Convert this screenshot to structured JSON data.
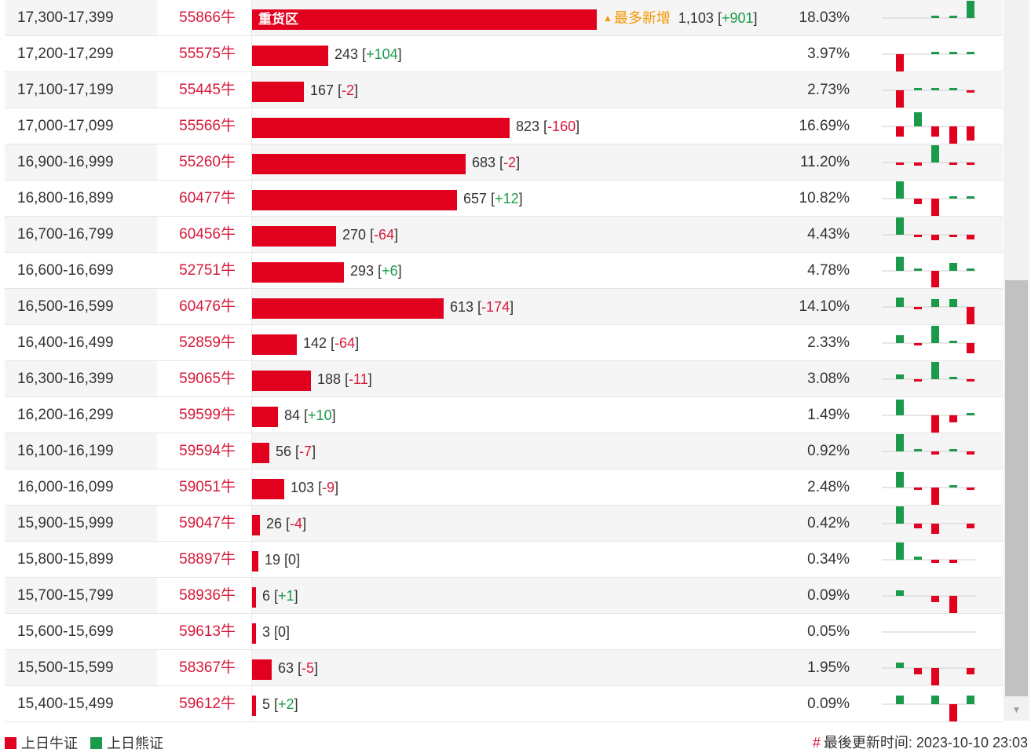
{
  "colors": {
    "bull": "#e2001f",
    "bear": "#1a9a4a",
    "hot": "#f39800",
    "code": "#d6193a"
  },
  "hot_zone_label": "重货区",
  "hot_tag": "最多新增",
  "rows": [
    {
      "range": "17,300-17,399",
      "code": "55866牛",
      "count": "1,103",
      "delta": "+901",
      "pct": "18.03%",
      "bar": 1103,
      "spark": [
        0,
        0,
        0,
        0.15,
        0.05,
        1
      ]
    },
    {
      "range": "17,200-17,299",
      "code": "55575牛",
      "count": "243",
      "delta": "+104",
      "pct": "3.97%",
      "bar": 243,
      "spark": [
        0,
        -1,
        0,
        0.15,
        0.05,
        0.15
      ]
    },
    {
      "range": "17,100-17,199",
      "code": "55445牛",
      "count": "167",
      "delta": "-2",
      "pct": "2.73%",
      "bar": 167,
      "spark": [
        0,
        -1,
        0.05,
        0.15,
        0.05,
        -0.1
      ]
    },
    {
      "range": "17,000-17,099",
      "code": "55566牛",
      "count": "823",
      "delta": "-160",
      "pct": "16.69%",
      "bar": 823,
      "spark": [
        0,
        -0.6,
        0.8,
        -0.6,
        -1,
        -0.8
      ]
    },
    {
      "range": "16,900-16,999",
      "code": "55260牛",
      "count": "683",
      "delta": "-2",
      "pct": "11.20%",
      "bar": 683,
      "spark": [
        0,
        -0.1,
        -0.2,
        1,
        -0.1,
        -0.1
      ]
    },
    {
      "range": "16,800-16,899",
      "code": "60477牛",
      "count": "657",
      "delta": "+12",
      "pct": "10.82%",
      "bar": 657,
      "spark": [
        0,
        1,
        -0.3,
        -1,
        0.05,
        0.05
      ]
    },
    {
      "range": "16,700-16,799",
      "code": "60456牛",
      "count": "270",
      "delta": "-64",
      "pct": "4.43%",
      "bar": 270,
      "spark": [
        0,
        1,
        -0.15,
        -0.3,
        -0.15,
        -0.25
      ]
    },
    {
      "range": "16,600-16,699",
      "code": "52751牛",
      "count": "293",
      "delta": "+6",
      "pct": "4.78%",
      "bar": 293,
      "spark": [
        0,
        0.8,
        0.05,
        -0.95,
        0.45,
        0.05
      ]
    },
    {
      "range": "16,500-16,599",
      "code": "60476牛",
      "count": "613",
      "delta": "-174",
      "pct": "14.10%",
      "bar": 613,
      "spark": [
        0,
        0.55,
        -0.15,
        0.45,
        0.45,
        -1
      ]
    },
    {
      "range": "16,400-16,499",
      "code": "52859牛",
      "count": "142",
      "delta": "-64",
      "pct": "2.33%",
      "bar": 142,
      "spark": [
        0,
        0.45,
        -0.1,
        1,
        0.05,
        -0.6
      ]
    },
    {
      "range": "16,300-16,399",
      "code": "59065牛",
      "count": "188",
      "delta": "-11",
      "pct": "3.08%",
      "bar": 188,
      "spark": [
        0,
        0.25,
        -0.1,
        1,
        0.05,
        -0.1
      ]
    },
    {
      "range": "16,200-16,299",
      "code": "59599牛",
      "count": "84",
      "delta": "+10",
      "pct": "1.49%",
      "bar": 84,
      "spark": [
        0,
        0.9,
        0,
        -1,
        -0.4,
        0.15
      ]
    },
    {
      "range": "16,100-16,199",
      "code": "59594牛",
      "count": "56",
      "delta": "-7",
      "pct": "0.92%",
      "bar": 56,
      "spark": [
        0,
        1,
        0.15,
        -0.2,
        0.05,
        -0.2
      ]
    },
    {
      "range": "16,000-16,099",
      "code": "59051牛",
      "count": "103",
      "delta": "-9",
      "pct": "2.48%",
      "bar": 103,
      "spark": [
        0,
        0.9,
        -0.15,
        -1,
        0.05,
        -0.15
      ]
    },
    {
      "range": "15,900-15,999",
      "code": "59047牛",
      "count": "26",
      "delta": "-4",
      "pct": "0.42%",
      "bar": 26,
      "spark": [
        0,
        1,
        -0.25,
        -0.6,
        0,
        -0.25
      ]
    },
    {
      "range": "15,800-15,899",
      "code": "58897牛",
      "count": "19",
      "delta": "0",
      "pct": "0.34%",
      "bar": 19,
      "spark": [
        0,
        1,
        0.2,
        -0.2,
        -0.2,
        0
      ]
    },
    {
      "range": "15,700-15,799",
      "code": "58936牛",
      "count": "6",
      "delta": "+1",
      "pct": "0.09%",
      "bar": 6,
      "spark": [
        0,
        0.3,
        0,
        -0.35,
        -1,
        0
      ]
    },
    {
      "range": "15,600-15,699",
      "code": "59613牛",
      "count": "3",
      "delta": "0",
      "pct": "0.05%",
      "bar": 3,
      "spark": [
        0,
        0,
        0,
        0,
        0,
        0
      ]
    },
    {
      "range": "15,500-15,599",
      "code": "58367牛",
      "count": "63",
      "delta": "-5",
      "pct": "1.95%",
      "bar": 63,
      "spark": [
        0,
        0.3,
        -0.35,
        -1,
        0,
        -0.35
      ]
    },
    {
      "range": "15,400-15,499",
      "code": "59612牛",
      "count": "5",
      "delta": "+2",
      "pct": "0.09%",
      "bar": 5,
      "spark": [
        0,
        0.5,
        0,
        0.5,
        -1,
        0.5
      ]
    }
  ],
  "legend": {
    "bull_label": "上日牛证",
    "bear_label": "上日熊证"
  },
  "updated": {
    "hash": "#",
    "text": "最後更新时间: 2023-10-10 23:03"
  }
}
